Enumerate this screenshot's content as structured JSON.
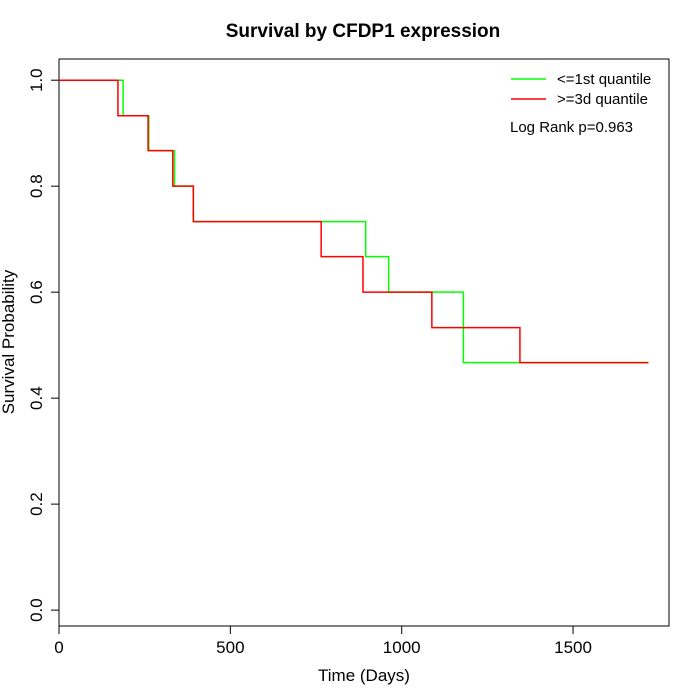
{
  "chart_data": {
    "type": "line",
    "title": "Survival by CFDP1 expression",
    "xlabel": "Time (Days)",
    "ylabel": "Survival Probability",
    "xlim": [
      0,
      1780
    ],
    "ylim": [
      -0.03,
      1.04
    ],
    "x_ticks": [
      0,
      500,
      1000,
      1500
    ],
    "y_ticks": [
      0.0,
      0.2,
      0.4,
      0.6,
      0.8,
      1.0
    ],
    "x_tick_labels": [
      "0",
      "500",
      "1000",
      "1500"
    ],
    "y_tick_labels": [
      "0.0",
      "0.2",
      "0.4",
      "0.6",
      "0.8",
      "1.0"
    ],
    "grid": false,
    "legend_position": "top-right",
    "series": [
      {
        "name": "<=1st quantile",
        "color": "#00ff00",
        "step": true,
        "x": [
          0,
          187,
          262,
          337,
          392,
          895,
          962,
          1180,
          1720
        ],
        "y": [
          1.0,
          0.933,
          0.867,
          0.8,
          0.733,
          0.667,
          0.6,
          0.467,
          0.467
        ]
      },
      {
        "name": ">=3d quantile",
        "color": "#ff0000",
        "step": true,
        "x": [
          0,
          172,
          260,
          332,
          392,
          765,
          887,
          1088,
          1345,
          1720
        ],
        "y": [
          1.0,
          0.933,
          0.867,
          0.8,
          0.733,
          0.667,
          0.6,
          0.533,
          0.467,
          0.467
        ]
      }
    ],
    "annotation": "Log Rank p=0.963"
  }
}
